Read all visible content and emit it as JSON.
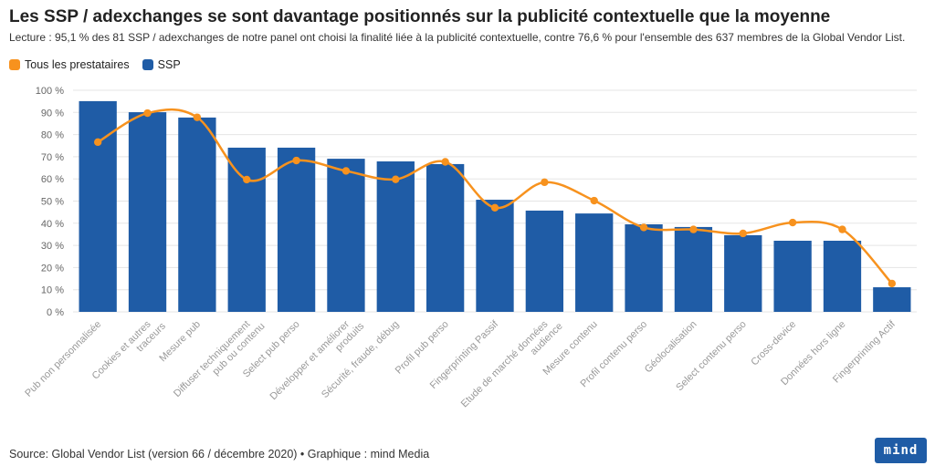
{
  "title": "Les SSP / adexchanges se sont davantage positionnés sur la publicité contextuelle que la moyenne",
  "subtitle": "Lecture : 95,1 % des 81 SSP / adexchanges de notre panel ont choisi la finalité liée à la publicité contextuelle, contre 76,6 % pour l'ensemble des 637 membres de la Global Vendor List.",
  "footer": "Source: Global Vendor List (version 66 / décembre 2020) • Graphique : mind Media",
  "logo_text": "mind",
  "colors": {
    "bar": "#1f5ca6",
    "line": "#f7921e",
    "grid": "#e5e5e5",
    "logo_bg": "#1f5ca6"
  },
  "chart_data": {
    "type": "bar",
    "categories": [
      "Pub non personnalisée",
      "Cookies et autres traceurs",
      "Mesure pub",
      "Diffuser techniquement pub ou contenu",
      "Select pub perso",
      "Développer et améliorer produits",
      "Sécurité, fraude, débug",
      "Profil pub perso",
      "Fingerprinting Passif",
      "Etude de marché données audience",
      "Mesure contenu",
      "Profil contenu perso",
      "Géolocalisation",
      "Select contenu perso",
      "Cross-device",
      "Données hors ligne",
      "Fingerprinting Actif"
    ],
    "series": [
      {
        "name": "Tous les prestataires",
        "type": "line",
        "color": "#f7921e",
        "values": [
          76.6,
          89.7,
          87.8,
          59.7,
          68.3,
          63.6,
          59.8,
          67.7,
          47.0,
          58.5,
          50.2,
          38.1,
          37.2,
          35.4,
          40.3,
          37.2,
          12.8
        ]
      },
      {
        "name": "SSP",
        "type": "bar",
        "color": "#1f5ca6",
        "values": [
          95.1,
          90.1,
          87.7,
          74.1,
          74.1,
          69.1,
          67.9,
          66.7,
          50.6,
          45.7,
          44.4,
          39.5,
          38.3,
          34.6,
          32.1,
          32.1,
          11.1
        ]
      }
    ],
    "yticks": [
      "0 %",
      "10 %",
      "20 %",
      "30 %",
      "40 %",
      "50 %",
      "60 %",
      "70 %",
      "80 %",
      "90 %",
      "100 %"
    ],
    "ylim": [
      0,
      100
    ],
    "grid": true,
    "legend_position": "top-left"
  }
}
